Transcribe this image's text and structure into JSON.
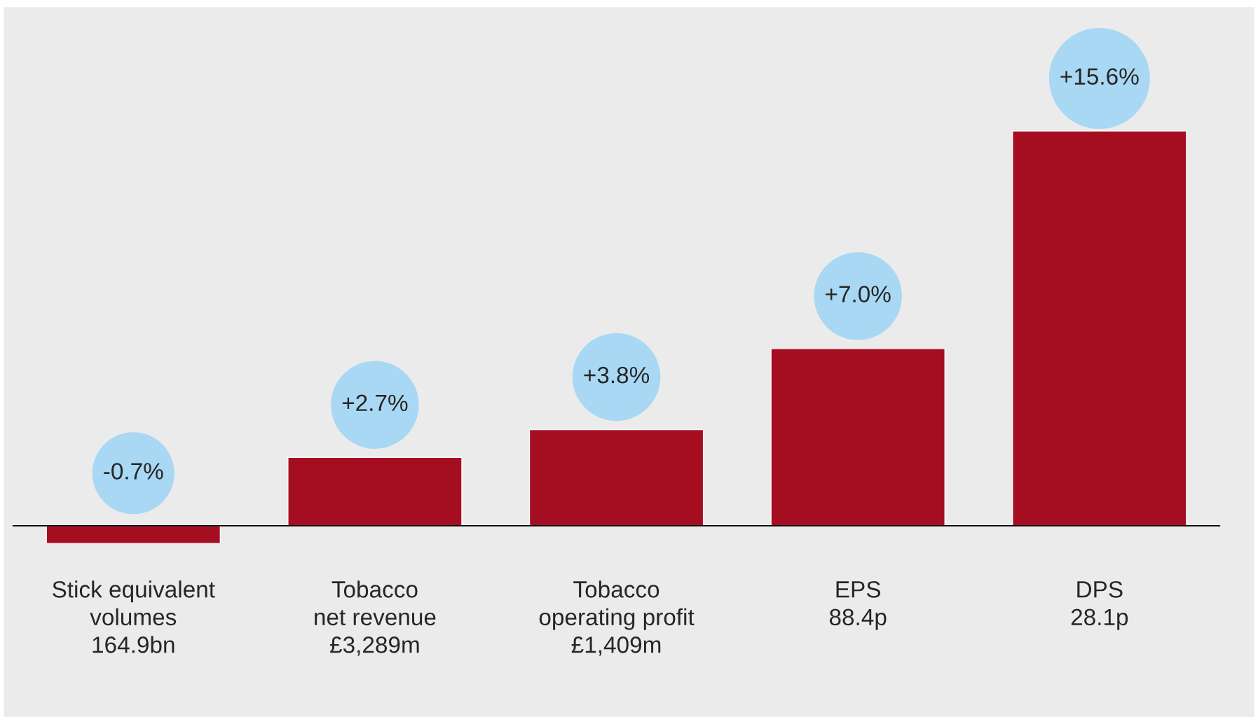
{
  "chart_data": {
    "type": "bar",
    "categories": [
      "Stick equivalent\nvolumes\n164.9bn",
      "Tobacco\nnet revenue\n£3,289m",
      "Tobacco\noperating profit\n£1,409m",
      "EPS\n88.4p",
      "DPS\n28.1p"
    ],
    "values": [
      -0.7,
      2.7,
      3.8,
      7.0,
      15.6
    ],
    "value_labels": [
      "-0.7%",
      "+2.7%",
      "+3.8%",
      "+7.0%",
      "+15.6%"
    ],
    "color": "#a50e21"
  }
}
